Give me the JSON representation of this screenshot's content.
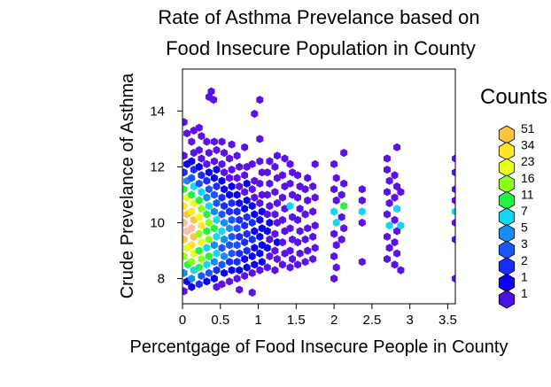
{
  "chart_data": {
    "type": "heatmap",
    "subtype": "hexbin",
    "title_lines": [
      "Rate of Asthma Prevelance based on",
      "Food Insecure Population in County"
    ],
    "xlabel": "Percentgage of Food Insecure People in County",
    "ylabel": "Crude Prevelance of Asthma",
    "xlim": [
      0,
      3.6
    ],
    "ylim": [
      7.1,
      15.5
    ],
    "x_ticks": [
      0,
      0.5,
      1,
      1.5,
      2,
      2.5,
      3,
      3.5
    ],
    "x_tick_labels": [
      "0",
      "0.5",
      "1",
      "1.5",
      "2",
      "2.5",
      "3",
      "3.5"
    ],
    "y_ticks": [
      8,
      10,
      12,
      14
    ],
    "y_tick_labels": [
      "8",
      "10",
      "12",
      "14"
    ],
    "grid": false,
    "legend": {
      "title": "Counts",
      "position": "right",
      "labels": [
        "51",
        "34",
        "23",
        "16",
        "11",
        "7",
        "5",
        "3",
        "2",
        "1",
        "1"
      ],
      "colors": [
        "#ffc43d",
        "#ffe52b",
        "#e6ff1a",
        "#8cff1a",
        "#27f046",
        "#15d6f0",
        "#1a8cf0",
        "#1a55ff",
        "#1a2cff",
        "#0a00f5",
        "#4a12e6"
      ]
    },
    "cell_colors": [
      "#5a12e8",
      "#0a00f5",
      "#1a2cff",
      "#1a55ff",
      "#1a8cf0",
      "#15d6f0",
      "#27f046",
      "#8cff1a",
      "#e6ff1a",
      "#ffe52b",
      "#ffc43d",
      "#f7bfa4"
    ],
    "hex_cells": [
      [
        0.02,
        7.55,
        0
      ],
      [
        0.06,
        7.9,
        1
      ],
      [
        0.02,
        8.2,
        4
      ],
      [
        0.07,
        8.5,
        6
      ],
      [
        0.02,
        8.8,
        7
      ],
      [
        0.06,
        9.1,
        8
      ],
      [
        0.02,
        9.4,
        10
      ],
      [
        0.06,
        9.7,
        11
      ],
      [
        0.02,
        10.0,
        11
      ],
      [
        0.06,
        10.3,
        10
      ],
      [
        0.02,
        10.6,
        9
      ],
      [
        0.06,
        10.9,
        8
      ],
      [
        0.02,
        11.2,
        6
      ],
      [
        0.06,
        11.5,
        4
      ],
      [
        0.02,
        11.8,
        2
      ],
      [
        0.06,
        12.1,
        1
      ],
      [
        0.02,
        12.4,
        0
      ],
      [
        0.06,
        13.2,
        0
      ],
      [
        0.02,
        13.6,
        0
      ],
      [
        0.12,
        7.7,
        1
      ],
      [
        0.12,
        8.0,
        4
      ],
      [
        0.15,
        8.3,
        5
      ],
      [
        0.12,
        8.6,
        7
      ],
      [
        0.15,
        8.9,
        8
      ],
      [
        0.12,
        9.2,
        9
      ],
      [
        0.15,
        9.5,
        10
      ],
      [
        0.12,
        9.8,
        11
      ],
      [
        0.15,
        10.1,
        10
      ],
      [
        0.12,
        10.4,
        9
      ],
      [
        0.15,
        10.7,
        8
      ],
      [
        0.12,
        11.0,
        6
      ],
      [
        0.15,
        11.3,
        5
      ],
      [
        0.12,
        11.6,
        3
      ],
      [
        0.15,
        11.9,
        2
      ],
      [
        0.12,
        12.2,
        1
      ],
      [
        0.15,
        12.5,
        0
      ],
      [
        0.12,
        12.9,
        0
      ],
      [
        0.15,
        13.3,
        0
      ],
      [
        0.22,
        7.8,
        2
      ],
      [
        0.25,
        8.1,
        3
      ],
      [
        0.22,
        8.4,
        6
      ],
      [
        0.25,
        8.7,
        7
      ],
      [
        0.22,
        9.0,
        6
      ],
      [
        0.25,
        9.3,
        8
      ],
      [
        0.22,
        9.6,
        7
      ],
      [
        0.25,
        9.9,
        9
      ],
      [
        0.22,
        10.2,
        8
      ],
      [
        0.25,
        10.5,
        7
      ],
      [
        0.22,
        10.8,
        6
      ],
      [
        0.25,
        11.1,
        5
      ],
      [
        0.22,
        11.4,
        3
      ],
      [
        0.25,
        11.7,
        2
      ],
      [
        0.22,
        12.0,
        1
      ],
      [
        0.25,
        12.3,
        0
      ],
      [
        0.22,
        12.6,
        0
      ],
      [
        0.25,
        13.1,
        0
      ],
      [
        0.22,
        13.4,
        0
      ],
      [
        0.32,
        7.9,
        1
      ],
      [
        0.35,
        8.2,
        3
      ],
      [
        0.32,
        8.5,
        5
      ],
      [
        0.35,
        8.8,
        6
      ],
      [
        0.32,
        9.1,
        5
      ],
      [
        0.35,
        9.4,
        7
      ],
      [
        0.32,
        9.7,
        6
      ],
      [
        0.35,
        10.0,
        7
      ],
      [
        0.32,
        10.3,
        6
      ],
      [
        0.35,
        10.6,
        5
      ],
      [
        0.32,
        10.9,
        4
      ],
      [
        0.35,
        11.2,
        3
      ],
      [
        0.32,
        11.5,
        2
      ],
      [
        0.35,
        11.8,
        1
      ],
      [
        0.32,
        12.1,
        0
      ],
      [
        0.35,
        12.5,
        0
      ],
      [
        0.32,
        12.9,
        0
      ],
      [
        0.35,
        14.5,
        0
      ],
      [
        0.38,
        14.7,
        0
      ],
      [
        0.41,
        14.4,
        0
      ],
      [
        0.42,
        8.0,
        1
      ],
      [
        0.45,
        8.3,
        2
      ],
      [
        0.42,
        8.6,
        4
      ],
      [
        0.45,
        8.9,
        5
      ],
      [
        0.42,
        9.2,
        4
      ],
      [
        0.45,
        9.5,
        5
      ],
      [
        0.42,
        9.8,
        6
      ],
      [
        0.45,
        10.1,
        5
      ],
      [
        0.42,
        10.4,
        4
      ],
      [
        0.45,
        10.7,
        3
      ],
      [
        0.42,
        11.0,
        3
      ],
      [
        0.45,
        11.3,
        2
      ],
      [
        0.42,
        11.6,
        1
      ],
      [
        0.45,
        11.9,
        1
      ],
      [
        0.42,
        12.2,
        0
      ],
      [
        0.45,
        12.6,
        0
      ],
      [
        0.42,
        12.9,
        0
      ],
      [
        0.45,
        7.7,
        0
      ],
      [
        0.52,
        7.8,
        0
      ],
      [
        0.55,
        8.2,
        1
      ],
      [
        0.52,
        8.5,
        3
      ],
      [
        0.55,
        8.8,
        4
      ],
      [
        0.52,
        9.1,
        3
      ],
      [
        0.55,
        9.4,
        4
      ],
      [
        0.52,
        9.7,
        5
      ],
      [
        0.55,
        10.0,
        4
      ],
      [
        0.52,
        10.3,
        3
      ],
      [
        0.55,
        10.6,
        2
      ],
      [
        0.52,
        10.9,
        2
      ],
      [
        0.55,
        11.2,
        1
      ],
      [
        0.52,
        11.5,
        1
      ],
      [
        0.55,
        11.8,
        0
      ],
      [
        0.52,
        12.1,
        0
      ],
      [
        0.55,
        12.5,
        0
      ],
      [
        0.52,
        12.9,
        0
      ],
      [
        0.62,
        7.9,
        0
      ],
      [
        0.65,
        8.3,
        1
      ],
      [
        0.62,
        8.6,
        2
      ],
      [
        0.65,
        8.9,
        3
      ],
      [
        0.62,
        9.2,
        3
      ],
      [
        0.65,
        9.5,
        3
      ],
      [
        0.62,
        9.8,
        4
      ],
      [
        0.65,
        10.1,
        3
      ],
      [
        0.62,
        10.4,
        2
      ],
      [
        0.65,
        10.7,
        2
      ],
      [
        0.62,
        11.0,
        1
      ],
      [
        0.65,
        11.3,
        1
      ],
      [
        0.62,
        11.6,
        0
      ],
      [
        0.65,
        11.9,
        0
      ],
      [
        0.62,
        12.3,
        0
      ],
      [
        0.65,
        12.8,
        0
      ],
      [
        0.72,
        8.0,
        0
      ],
      [
        0.75,
        8.3,
        1
      ],
      [
        0.72,
        8.6,
        2
      ],
      [
        0.75,
        8.9,
        2
      ],
      [
        0.72,
        9.2,
        3
      ],
      [
        0.75,
        9.5,
        2
      ],
      [
        0.72,
        9.8,
        3
      ],
      [
        0.75,
        10.1,
        2
      ],
      [
        0.72,
        10.4,
        2
      ],
      [
        0.75,
        10.7,
        1
      ],
      [
        0.72,
        11.0,
        1
      ],
      [
        0.75,
        11.3,
        0
      ],
      [
        0.72,
        11.6,
        0
      ],
      [
        0.75,
        12.0,
        0
      ],
      [
        0.72,
        12.4,
        0
      ],
      [
        0.75,
        7.6,
        0
      ],
      [
        0.82,
        8.1,
        0
      ],
      [
        0.85,
        8.4,
        1
      ],
      [
        0.82,
        8.7,
        1
      ],
      [
        0.85,
        9.0,
        2
      ],
      [
        0.82,
        9.3,
        2
      ],
      [
        0.85,
        9.6,
        2
      ],
      [
        0.82,
        9.9,
        2
      ],
      [
        0.85,
        10.2,
        2
      ],
      [
        0.82,
        10.5,
        1
      ],
      [
        0.85,
        10.8,
        1
      ],
      [
        0.82,
        11.1,
        0
      ],
      [
        0.85,
        11.4,
        1
      ],
      [
        0.82,
        11.7,
        0
      ],
      [
        0.85,
        12.0,
        0
      ],
      [
        0.82,
        12.7,
        0
      ],
      [
        0.92,
        8.2,
        0
      ],
      [
        0.95,
        8.5,
        1
      ],
      [
        0.92,
        8.8,
        1
      ],
      [
        0.95,
        9.1,
        1
      ],
      [
        0.92,
        9.4,
        2
      ],
      [
        0.95,
        9.7,
        1
      ],
      [
        0.92,
        10.0,
        2
      ],
      [
        0.95,
        10.3,
        1
      ],
      [
        0.92,
        10.6,
        1
      ],
      [
        0.95,
        10.9,
        0
      ],
      [
        0.92,
        11.2,
        0
      ],
      [
        0.95,
        11.5,
        0
      ],
      [
        0.92,
        12.1,
        0
      ],
      [
        0.95,
        13.9,
        0
      ],
      [
        0.92,
        7.5,
        0
      ],
      [
        1.02,
        8.3,
        0
      ],
      [
        1.05,
        8.6,
        1
      ],
      [
        1.02,
        8.9,
        1
      ],
      [
        1.05,
        9.2,
        1
      ],
      [
        1.02,
        9.5,
        1
      ],
      [
        1.05,
        9.8,
        1
      ],
      [
        1.02,
        10.1,
        1
      ],
      [
        1.05,
        10.4,
        1
      ],
      [
        1.02,
        10.7,
        0
      ],
      [
        1.05,
        11.0,
        0
      ],
      [
        1.02,
        11.4,
        0
      ],
      [
        1.05,
        11.8,
        0
      ],
      [
        1.02,
        12.2,
        0
      ],
      [
        1.02,
        14.4,
        0
      ],
      [
        1.02,
        13.0,
        0
      ],
      [
        1.12,
        8.4,
        0
      ],
      [
        1.15,
        8.8,
        0
      ],
      [
        1.12,
        9.1,
        1
      ],
      [
        1.15,
        9.4,
        0
      ],
      [
        1.12,
        9.7,
        1
      ],
      [
        1.15,
        10.0,
        1
      ],
      [
        1.12,
        10.3,
        0
      ],
      [
        1.15,
        10.6,
        0
      ],
      [
        1.12,
        11.0,
        0
      ],
      [
        1.15,
        11.4,
        0
      ],
      [
        1.12,
        11.8,
        0
      ],
      [
        1.15,
        12.2,
        0
      ],
      [
        1.22,
        8.3,
        0
      ],
      [
        1.25,
        8.7,
        0
      ],
      [
        1.22,
        9.0,
        0
      ],
      [
        1.25,
        9.3,
        1
      ],
      [
        1.22,
        9.6,
        0
      ],
      [
        1.25,
        10.0,
        0
      ],
      [
        1.22,
        10.3,
        0
      ],
      [
        1.25,
        10.7,
        0
      ],
      [
        1.22,
        11.1,
        0
      ],
      [
        1.25,
        11.6,
        0
      ],
      [
        1.22,
        12.0,
        0
      ],
      [
        1.25,
        12.4,
        0
      ],
      [
        1.32,
        8.5,
        0
      ],
      [
        1.35,
        8.9,
        0
      ],
      [
        1.32,
        9.3,
        0
      ],
      [
        1.35,
        9.7,
        0
      ],
      [
        1.32,
        10.1,
        0
      ],
      [
        1.35,
        10.5,
        0
      ],
      [
        1.32,
        10.9,
        0
      ],
      [
        1.35,
        11.3,
        0
      ],
      [
        1.32,
        11.7,
        0
      ],
      [
        1.35,
        12.3,
        0
      ],
      [
        1.42,
        8.4,
        0
      ],
      [
        1.45,
        8.7,
        0
      ],
      [
        1.42,
        9.0,
        0
      ],
      [
        1.45,
        9.4,
        0
      ],
      [
        1.42,
        9.8,
        0
      ],
      [
        1.45,
        10.2,
        0
      ],
      [
        1.42,
        10.6,
        5
      ],
      [
        1.45,
        11.0,
        0
      ],
      [
        1.42,
        11.4,
        0
      ],
      [
        1.45,
        11.8,
        0
      ],
      [
        1.42,
        12.1,
        0
      ],
      [
        1.52,
        8.5,
        0
      ],
      [
        1.55,
        8.9,
        0
      ],
      [
        1.52,
        9.3,
        0
      ],
      [
        1.55,
        9.7,
        0
      ],
      [
        1.52,
        10.1,
        0
      ],
      [
        1.55,
        10.5,
        0
      ],
      [
        1.52,
        10.9,
        0
      ],
      [
        1.55,
        11.3,
        0
      ],
      [
        1.52,
        11.7,
        0
      ],
      [
        1.62,
        8.6,
        0
      ],
      [
        1.65,
        9.0,
        0
      ],
      [
        1.62,
        9.4,
        0
      ],
      [
        1.65,
        9.8,
        0
      ],
      [
        1.62,
        10.3,
        0
      ],
      [
        1.65,
        10.8,
        0
      ],
      [
        1.62,
        11.2,
        0
      ],
      [
        1.65,
        11.6,
        0
      ],
      [
        1.72,
        8.7,
        0
      ],
      [
        1.75,
        9.1,
        0
      ],
      [
        1.72,
        9.5,
        0
      ],
      [
        1.75,
        9.9,
        0
      ],
      [
        1.72,
        10.4,
        0
      ],
      [
        1.75,
        10.9,
        0
      ],
      [
        1.72,
        11.3,
        0
      ],
      [
        1.75,
        12.1,
        0
      ],
      [
        2.0,
        8.0,
        0
      ],
      [
        2.03,
        8.4,
        0
      ],
      [
        2.0,
        8.8,
        0
      ],
      [
        2.03,
        9.2,
        0
      ],
      [
        2.0,
        9.6,
        0
      ],
      [
        2.03,
        10.0,
        5
      ],
      [
        2.0,
        10.4,
        5
      ],
      [
        2.03,
        10.8,
        0
      ],
      [
        2.0,
        11.2,
        0
      ],
      [
        2.03,
        11.6,
        0
      ],
      [
        2.0,
        12.1,
        0
      ],
      [
        2.1,
        9.4,
        0
      ],
      [
        2.13,
        9.8,
        0
      ],
      [
        2.1,
        10.2,
        0
      ],
      [
        2.13,
        10.6,
        6
      ],
      [
        2.1,
        11.0,
        0
      ],
      [
        2.13,
        11.4,
        0
      ],
      [
        2.13,
        12.5,
        0
      ],
      [
        2.37,
        8.6,
        0
      ],
      [
        2.37,
        10.0,
        0
      ],
      [
        2.37,
        10.4,
        5
      ],
      [
        2.37,
        10.8,
        0
      ],
      [
        2.37,
        11.2,
        0
      ],
      [
        2.7,
        8.7,
        0
      ],
      [
        2.73,
        9.1,
        0
      ],
      [
        2.7,
        9.5,
        0
      ],
      [
        2.73,
        9.9,
        5
      ],
      [
        2.7,
        10.3,
        0
      ],
      [
        2.73,
        10.7,
        0
      ],
      [
        2.7,
        11.1,
        0
      ],
      [
        2.73,
        11.5,
        0
      ],
      [
        2.7,
        11.9,
        0
      ],
      [
        2.7,
        12.3,
        0
      ],
      [
        2.8,
        8.5,
        0
      ],
      [
        2.83,
        8.9,
        0
      ],
      [
        2.8,
        9.3,
        0
      ],
      [
        2.83,
        9.7,
        0
      ],
      [
        2.8,
        10.1,
        0
      ],
      [
        2.83,
        10.5,
        5
      ],
      [
        2.8,
        10.9,
        0
      ],
      [
        2.83,
        11.3,
        0
      ],
      [
        2.8,
        11.7,
        0
      ],
      [
        2.83,
        12.7,
        0
      ],
      [
        2.88,
        8.3,
        0
      ],
      [
        2.88,
        9.9,
        5
      ],
      [
        2.88,
        11.1,
        0
      ],
      [
        3.6,
        8.0,
        0
      ],
      [
        3.6,
        9.4,
        0
      ],
      [
        3.6,
        10.0,
        0
      ],
      [
        3.6,
        10.4,
        5
      ],
      [
        3.6,
        10.8,
        0
      ],
      [
        3.6,
        11.2,
        0
      ],
      [
        3.6,
        11.8,
        0
      ],
      [
        3.6,
        12.3,
        0
      ]
    ]
  }
}
